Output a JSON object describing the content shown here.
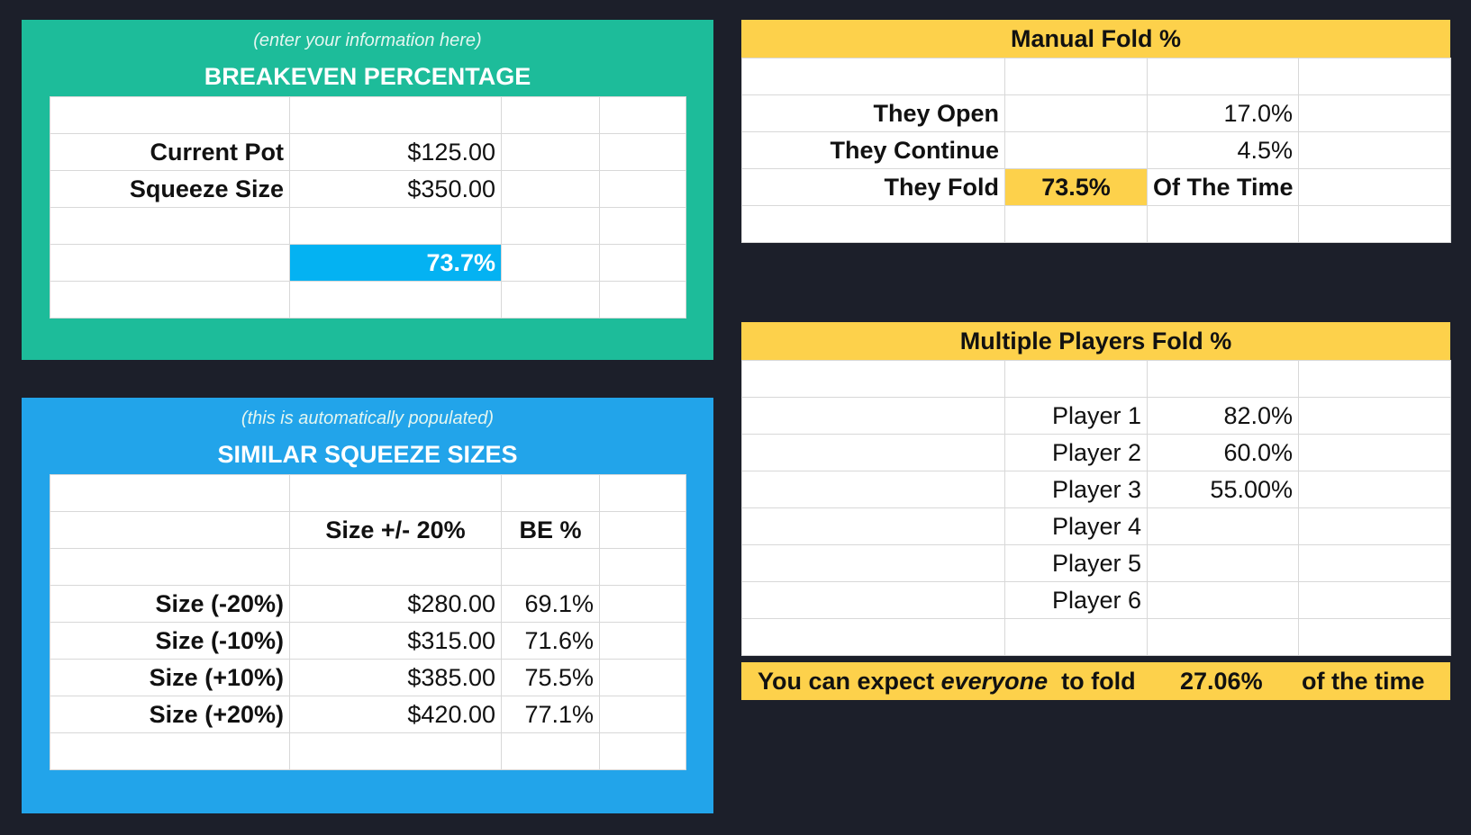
{
  "breakeven": {
    "subtitle": "(enter your information here)",
    "title": "BREAKEVEN PERCENTAGE",
    "current_pot_label": "Current Pot",
    "current_pot_value": "$125.00",
    "squeeze_size_label": "Squeeze Size",
    "squeeze_size_value": "$350.00",
    "result": "73.7%"
  },
  "similar": {
    "subtitle": "(this is automatically populated)",
    "title": "SIMILAR SQUEEZE SIZES",
    "col_size": "Size +/- 20%",
    "col_be": "BE %",
    "rows": [
      {
        "label": "Size (-20%)",
        "size": "$280.00",
        "be": "69.1%"
      },
      {
        "label": "Size (-10%)",
        "size": "$315.00",
        "be": "71.6%"
      },
      {
        "label": "Size (+10%)",
        "size": "$385.00",
        "be": "75.5%"
      },
      {
        "label": "Size (+20%)",
        "size": "$420.00",
        "be": "77.1%"
      }
    ]
  },
  "manual": {
    "title": "Manual Fold %",
    "open_label": "They Open",
    "open_value": "17.0%",
    "continue_label": "They Continue",
    "continue_value": "4.5%",
    "fold_label": "They Fold",
    "fold_value": "73.5%",
    "fold_suffix": "Of The Time"
  },
  "multi": {
    "title": "Multiple Players Fold %",
    "players": [
      {
        "label": "Player 1",
        "value": "82.0%"
      },
      {
        "label": "Player 2",
        "value": "60.0%"
      },
      {
        "label": "Player 3",
        "value": "55.00%"
      },
      {
        "label": "Player 4",
        "value": ""
      },
      {
        "label": "Player 5",
        "value": ""
      },
      {
        "label": "Player 6",
        "value": ""
      }
    ],
    "footer_pre": "You can expect ",
    "footer_em": "everyone",
    "footer_post": "  to fold",
    "footer_value": "27.06%",
    "footer_suffix": "of the time"
  },
  "colors": {
    "background": "#1c1f2a",
    "teal": "#1dbc9a",
    "blue": "#22a4ea",
    "result_cell": "#04b2f2",
    "yellow": "#fdd14b"
  }
}
